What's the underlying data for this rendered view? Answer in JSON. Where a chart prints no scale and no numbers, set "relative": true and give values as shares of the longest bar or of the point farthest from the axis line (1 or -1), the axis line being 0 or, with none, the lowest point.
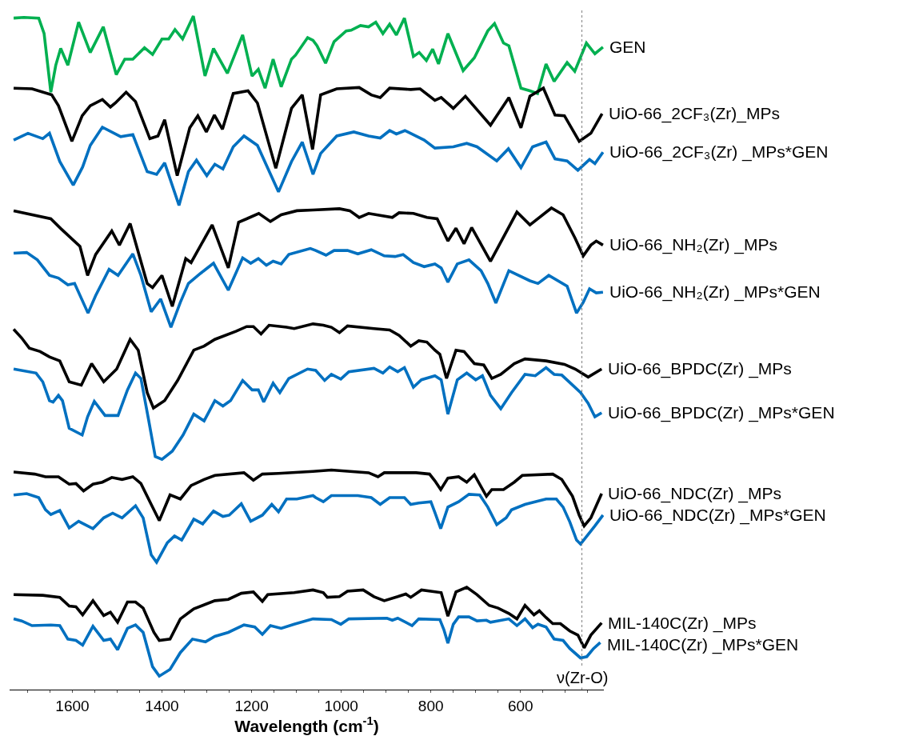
{
  "chart_data": {
    "type": "line",
    "relative": true,
    "xlabel": "Wavelength (cm$^{-1}$)",
    "xlim": [
      1740,
      414
    ],
    "xticks": [
      {
        "value": 1700,
        "label": null
      },
      {
        "value": 1650,
        "label": null
      },
      1600,
      {
        "value": 1550,
        "label": null
      },
      {
        "value": 1500,
        "label": null
      },
      {
        "value": 1450,
        "label": null
      },
      1400,
      {
        "value": 1350,
        "label": null
      },
      {
        "value": 1300,
        "label": null
      },
      {
        "value": 1250,
        "label": null
      },
      1200,
      {
        "value": 1150,
        "label": null
      },
      {
        "value": 1100,
        "label": null
      },
      {
        "value": 1050,
        "label": null
      },
      1000,
      {
        "value": 950,
        "label": null
      },
      {
        "value": 900,
        "label": null
      },
      {
        "value": 850,
        "label": null
      },
      800,
      {
        "value": 750,
        "label": null
      },
      {
        "value": 700,
        "label": null
      },
      {
        "value": 650,
        "label": null
      },
      600,
      {
        "value": 550,
        "label": null
      },
      {
        "value": 500,
        "label": null
      },
      {
        "value": 450,
        "label": null
      }
    ],
    "tick_labels": "x",
    "legend": false,
    "marker": "none",
    "line_style": "solid",
    "ref_lines": [
      {
        "axis": "x",
        "value": 463,
        "label": "ν(Zr-O)",
        "color": "#808080",
        "line_style": "dotted"
      }
    ],
    "series": [
      {
        "name": "GEN",
        "color": "#00b050",
        "x": [
          1731,
          1708,
          1675,
          1663,
          1648,
          1637,
          1626,
          1610,
          1586,
          1560,
          1531,
          1502,
          1483,
          1465,
          1439,
          1421,
          1400,
          1385,
          1371,
          1354,
          1330,
          1304,
          1285,
          1254,
          1220,
          1199,
          1185,
          1170,
          1152,
          1134,
          1111,
          1102,
          1075,
          1063,
          1054,
          1035,
          1016,
          989,
          978,
          957,
          939,
          923,
          907,
          892,
          877,
          859,
          839,
          826,
          810,
          796,
          783,
          762,
          728,
          703,
          673,
          658,
          638,
          626,
          599,
          579,
          562,
          543,
          525,
          496,
          479,
          453,
          434,
          416
        ],
        "values": [
          0.997,
          0.998,
          0.997,
          0.974,
          0.887,
          0.927,
          0.952,
          0.927,
          0.991,
          0.946,
          0.984,
          0.913,
          0.936,
          0.936,
          0.953,
          0.943,
          0.966,
          0.966,
          0.98,
          0.966,
          1.0,
          0.911,
          0.952,
          0.915,
          0.972,
          0.911,
          0.921,
          0.893,
          0.936,
          0.895,
          0.936,
          0.942,
          0.968,
          0.964,
          0.956,
          0.93,
          0.962,
          0.978,
          0.979,
          0.986,
          0.984,
          0.991,
          0.974,
          0.988,
          0.972,
          0.997,
          0.94,
          0.946,
          0.934,
          0.951,
          0.929,
          0.974,
          0.919,
          0.938,
          0.978,
          0.989,
          0.96,
          0.956,
          0.893,
          0.889,
          0.885,
          0.929,
          0.903,
          0.931,
          0.918,
          0.96,
          0.944,
          0.954
        ]
      },
      {
        "name": "UiO-66_2CF₃(Zr)_MPs",
        "color": "#000000",
        "x": [
          1731,
          1690,
          1646,
          1631,
          1601,
          1578,
          1560,
          1533,
          1515,
          1504,
          1480,
          1459,
          1427,
          1409,
          1394,
          1366,
          1338,
          1320,
          1301,
          1283,
          1265,
          1241,
          1208,
          1187,
          1146,
          1111,
          1087,
          1064,
          1046,
          1010,
          960,
          933,
          913,
          892,
          845,
          824,
          791,
          777,
          750,
          723,
          697,
          667,
          626,
          599,
          579,
          549,
          523,
          502,
          469,
          443,
          418
        ],
        "values": [
          0.893,
          0.892,
          0.883,
          0.867,
          0.814,
          0.852,
          0.867,
          0.876,
          0.865,
          0.871,
          0.887,
          0.873,
          0.818,
          0.822,
          0.846,
          0.763,
          0.834,
          0.852,
          0.828,
          0.853,
          0.832,
          0.885,
          0.889,
          0.871,
          0.774,
          0.863,
          0.883,
          0.802,
          0.883,
          0.892,
          0.894,
          0.883,
          0.879,
          0.893,
          0.891,
          0.892,
          0.875,
          0.879,
          0.863,
          0.881,
          0.861,
          0.838,
          0.879,
          0.834,
          0.881,
          0.893,
          0.853,
          0.852,
          0.814,
          0.826,
          0.855
        ]
      },
      {
        "name": "UiO-66_2CF₃(Zr) _MPs*GEN",
        "color": "#0070c0",
        "x": [
          1731,
          1699,
          1666,
          1651,
          1628,
          1598,
          1577,
          1560,
          1533,
          1492,
          1465,
          1433,
          1412,
          1394,
          1362,
          1341,
          1323,
          1300,
          1282,
          1264,
          1241,
          1217,
          1187,
          1140,
          1111,
          1087,
          1063,
          1046,
          1010,
          972,
          939,
          913,
          892,
          877,
          858,
          815,
          791,
          750,
          720,
          697,
          653,
          627,
          599,
          573,
          543,
          523,
          496,
          472,
          446,
          434,
          416
        ],
        "values": [
          0.816,
          0.826,
          0.818,
          0.826,
          0.784,
          0.749,
          0.776,
          0.808,
          0.835,
          0.821,
          0.824,
          0.769,
          0.765,
          0.782,
          0.719,
          0.769,
          0.786,
          0.763,
          0.78,
          0.773,
          0.806,
          0.822,
          0.808,
          0.739,
          0.784,
          0.813,
          0.765,
          0.796,
          0.822,
          0.828,
          0.822,
          0.819,
          0.83,
          0.825,
          0.83,
          0.816,
          0.804,
          0.806,
          0.811,
          0.806,
          0.785,
          0.803,
          0.775,
          0.806,
          0.813,
          0.788,
          0.785,
          0.771,
          0.787,
          0.781,
          0.798
        ]
      },
      {
        "name": "UiO-66_NH₂(Zr) _MPs",
        "color": "#000000",
        "x": [
          1731,
          1648,
          1625,
          1583,
          1566,
          1548,
          1512,
          1495,
          1471,
          1433,
          1421,
          1400,
          1377,
          1347,
          1335,
          1288,
          1252,
          1229,
          1211,
          1184,
          1158,
          1134,
          1099,
          1063,
          1004,
          981,
          960,
          939,
          886,
          871,
          839,
          809,
          786,
          762,
          744,
          726,
          709,
          667,
          608,
          579,
          531,
          505,
          478,
          460,
          443,
          431,
          416
        ],
        "values": [
          0.711,
          0.699,
          0.684,
          0.658,
          0.615,
          0.646,
          0.681,
          0.66,
          0.692,
          0.603,
          0.597,
          0.615,
          0.569,
          0.64,
          0.634,
          0.69,
          0.626,
          0.694,
          0.699,
          0.707,
          0.695,
          0.705,
          0.711,
          0.712,
          0.714,
          0.711,
          0.701,
          0.707,
          0.701,
          0.708,
          0.707,
          0.701,
          0.699,
          0.666,
          0.685,
          0.662,
          0.686,
          0.636,
          0.709,
          0.69,
          0.715,
          0.705,
          0.67,
          0.644,
          0.66,
          0.666,
          0.66
        ]
      },
      {
        "name": "UiO-66_NH₂(Zr) _MPs*GEN",
        "color": "#0070c0",
        "x": [
          1731,
          1702,
          1678,
          1651,
          1631,
          1610,
          1595,
          1565,
          1548,
          1518,
          1498,
          1465,
          1447,
          1424,
          1403,
          1380,
          1359,
          1341,
          1314,
          1285,
          1252,
          1220,
          1202,
          1185,
          1167,
          1152,
          1134,
          1117,
          1069,
          1057,
          1034,
          1016,
          986,
          963,
          933,
          904,
          880,
          862,
          839,
          815,
          791,
          777,
          762,
          741,
          715,
          688,
          673,
          655,
          626,
          579,
          561,
          537,
          496,
          475,
          460,
          446,
          431,
          416
        ],
        "values": [
          0.648,
          0.649,
          0.638,
          0.615,
          0.611,
          0.601,
          0.603,
          0.559,
          0.585,
          0.624,
          0.615,
          0.647,
          0.615,
          0.561,
          0.58,
          0.538,
          0.575,
          0.603,
          0.618,
          0.633,
          0.593,
          0.641,
          0.633,
          0.64,
          0.63,
          0.636,
          0.632,
          0.646,
          0.655,
          0.652,
          0.645,
          0.652,
          0.652,
          0.647,
          0.653,
          0.644,
          0.643,
          0.646,
          0.634,
          0.628,
          0.632,
          0.626,
          0.605,
          0.632,
          0.638,
          0.622,
          0.603,
          0.574,
          0.622,
          0.607,
          0.603,
          0.615,
          0.599,
          0.559,
          0.575,
          0.595,
          0.589,
          0.59
        ]
      },
      {
        "name": "UiO-66_BPDC(Zr) _MPs",
        "color": "#000000",
        "x": [
          1731,
          1713,
          1696,
          1672,
          1651,
          1628,
          1607,
          1580,
          1557,
          1530,
          1501,
          1471,
          1453,
          1433,
          1419,
          1394,
          1365,
          1329,
          1306,
          1282,
          1235,
          1211,
          1196,
          1179,
          1161,
          1122,
          1105,
          1063,
          1040,
          1022,
          1004,
          986,
          927,
          892,
          871,
          845,
          827,
          809,
          791,
          780,
          765,
          744,
          726,
          703,
          682,
          664,
          644,
          614,
          590,
          543,
          502,
          478,
          449,
          419
        ],
        "values": [
          0.535,
          0.522,
          0.507,
          0.502,
          0.494,
          0.488,
          0.457,
          0.452,
          0.484,
          0.457,
          0.476,
          0.52,
          0.504,
          0.441,
          0.418,
          0.429,
          0.459,
          0.504,
          0.51,
          0.52,
          0.532,
          0.539,
          0.539,
          0.528,
          0.541,
          0.538,
          0.536,
          0.543,
          0.541,
          0.538,
          0.53,
          0.54,
          0.536,
          0.534,
          0.526,
          0.51,
          0.518,
          0.516,
          0.504,
          0.498,
          0.462,
          0.504,
          0.502,
          0.484,
          0.482,
          0.462,
          0.468,
          0.484,
          0.491,
          0.488,
          0.483,
          0.476,
          0.464,
          0.476
        ]
      },
      {
        "name": "UiO-66_BPDC(Zr) _MPs*GEN",
        "color": "#0070c0",
        "x": [
          1731,
          1681,
          1666,
          1651,
          1643,
          1631,
          1622,
          1607,
          1578,
          1566,
          1551,
          1527,
          1498,
          1477,
          1459,
          1447,
          1430,
          1415,
          1400,
          1377,
          1353,
          1329,
          1306,
          1282,
          1264,
          1247,
          1220,
          1199,
          1185,
          1173,
          1152,
          1137,
          1117,
          1075,
          1057,
          1037,
          1022,
          1001,
          983,
          927,
          907,
          892,
          874,
          859,
          839,
          821,
          791,
          777,
          762,
          741,
          720,
          700,
          685,
          667,
          644,
          620,
          590,
          567,
          543,
          525,
          508,
          490,
          466,
          449,
          434,
          419
        ],
        "values": [
          0.476,
          0.47,
          0.457,
          0.429,
          0.427,
          0.437,
          0.429,
          0.388,
          0.378,
          0.405,
          0.428,
          0.407,
          0.407,
          0.445,
          0.47,
          0.462,
          0.401,
          0.346,
          0.342,
          0.354,
          0.378,
          0.409,
          0.399,
          0.429,
          0.421,
          0.429,
          0.459,
          0.445,
          0.445,
          0.427,
          0.455,
          0.441,
          0.462,
          0.476,
          0.474,
          0.459,
          0.468,
          0.461,
          0.472,
          0.477,
          0.47,
          0.479,
          0.472,
          0.478,
          0.449,
          0.46,
          0.466,
          0.46,
          0.409,
          0.46,
          0.47,
          0.46,
          0.466,
          0.437,
          0.417,
          0.441,
          0.468,
          0.466,
          0.478,
          0.468,
          0.467,
          0.456,
          0.441,
          0.425,
          0.405,
          0.411
        ]
      },
      {
        "name": "UiO-66_NDC(Zr) _MPs",
        "color": "#000000",
        "x": [
          1731,
          1684,
          1660,
          1631,
          1607,
          1592,
          1575,
          1554,
          1533,
          1512,
          1489,
          1465,
          1447,
          1424,
          1406,
          1382,
          1359,
          1335,
          1306,
          1282,
          1217,
          1196,
          1176,
          1140,
          1063,
          1022,
          939,
          918,
          904,
          833,
          803,
          791,
          778,
          762,
          738,
          720,
          703,
          676,
          664,
          638,
          614,
          596,
          528,
          508,
          484,
          469,
          458,
          443,
          419
        ],
        "values": [
          0.323,
          0.32,
          0.316,
          0.316,
          0.305,
          0.306,
          0.295,
          0.305,
          0.308,
          0.315,
          0.312,
          0.316,
          0.306,
          0.275,
          0.251,
          0.289,
          0.283,
          0.303,
          0.312,
          0.318,
          0.322,
          0.311,
          0.32,
          0.321,
          0.324,
          0.326,
          0.322,
          0.316,
          0.322,
          0.322,
          0.32,
          0.31,
          0.297,
          0.314,
          0.316,
          0.308,
          0.319,
          0.287,
          0.297,
          0.297,
          0.308,
          0.318,
          0.32,
          0.312,
          0.287,
          0.259,
          0.243,
          0.255,
          0.291
        ]
      },
      {
        "name": "UiO-66_NDC(Zr) _MPs*GEN",
        "color": "#0070c0",
        "x": [
          1731,
          1702,
          1675,
          1660,
          1648,
          1628,
          1607,
          1586,
          1554,
          1530,
          1510,
          1489,
          1459,
          1442,
          1424,
          1412,
          1388,
          1372,
          1356,
          1329,
          1309,
          1285,
          1264,
          1250,
          1223,
          1202,
          1176,
          1155,
          1140,
          1122,
          1099,
          1063,
          1057,
          1040,
          1022,
          963,
          933,
          913,
          892,
          859,
          845,
          827,
          800,
          791,
          778,
          762,
          738,
          715,
          691,
          673,
          653,
          632,
          620,
          590,
          543,
          520,
          505,
          490,
          475,
          466,
          452,
          434,
          416
        ],
        "values": [
          0.289,
          0.291,
          0.285,
          0.267,
          0.26,
          0.266,
          0.24,
          0.25,
          0.239,
          0.255,
          0.262,
          0.255,
          0.273,
          0.255,
          0.2,
          0.189,
          0.218,
          0.228,
          0.222,
          0.253,
          0.246,
          0.265,
          0.257,
          0.259,
          0.276,
          0.25,
          0.259,
          0.275,
          0.264,
          0.283,
          0.283,
          0.288,
          0.285,
          0.279,
          0.288,
          0.288,
          0.285,
          0.275,
          0.285,
          0.285,
          0.275,
          0.277,
          0.279,
          0.263,
          0.239,
          0.271,
          0.279,
          0.29,
          0.289,
          0.271,
          0.245,
          0.255,
          0.267,
          0.275,
          0.283,
          0.283,
          0.271,
          0.249,
          0.222,
          0.216,
          0.228,
          0.243,
          0.259
        ]
      },
      {
        "name": "MIL-140C(Zr) _MPs",
        "color": "#000000",
        "x": [
          1731,
          1666,
          1628,
          1607,
          1592,
          1577,
          1554,
          1530,
          1515,
          1499,
          1477,
          1459,
          1442,
          1418,
          1406,
          1382,
          1359,
          1329,
          1282,
          1252,
          1223,
          1196,
          1176,
          1164,
          1105,
          1063,
          1040,
          1031,
          1004,
          986,
          951,
          927,
          904,
          874,
          856,
          845,
          821,
          777,
          762,
          744,
          720,
          697,
          670,
          650,
          626,
          608,
          590,
          570,
          558,
          543,
          528,
          511,
          490,
          472,
          458,
          443,
          419
        ],
        "values": [
          0.141,
          0.14,
          0.137,
          0.124,
          0.123,
          0.111,
          0.132,
          0.11,
          0.115,
          0.1,
          0.13,
          0.13,
          0.121,
          0.085,
          0.073,
          0.075,
          0.105,
          0.12,
          0.132,
          0.134,
          0.143,
          0.145,
          0.131,
          0.141,
          0.144,
          0.148,
          0.144,
          0.137,
          0.138,
          0.146,
          0.148,
          0.138,
          0.132,
          0.138,
          0.142,
          0.137,
          0.148,
          0.144,
          0.109,
          0.145,
          0.152,
          0.141,
          0.125,
          0.121,
          0.113,
          0.105,
          0.125,
          0.111,
          0.117,
          0.107,
          0.098,
          0.098,
          0.087,
          0.081,
          0.062,
          0.081,
          0.099
        ]
      },
      {
        "name": "MIL-140C(Zr) _MPs*GEN",
        "color": "#0070c0",
        "x": [
          1731,
          1713,
          1690,
          1648,
          1628,
          1610,
          1592,
          1577,
          1554,
          1530,
          1515,
          1499,
          1477,
          1459,
          1442,
          1421,
          1406,
          1382,
          1359,
          1332,
          1303,
          1282,
          1252,
          1217,
          1193,
          1176,
          1158,
          1134,
          1105,
          1063,
          1022,
          1001,
          983,
          898,
          886,
          874,
          842,
          827,
          780,
          771,
          762,
          750,
          738,
          715,
          697,
          676,
          667,
          626,
          608,
          590,
          573,
          561,
          543,
          525,
          505,
          490,
          466,
          452,
          437,
          422
        ],
        "values": [
          0.105,
          0.102,
          0.095,
          0.096,
          0.095,
          0.075,
          0.073,
          0.066,
          0.094,
          0.073,
          0.075,
          0.059,
          0.091,
          0.096,
          0.085,
          0.034,
          0.02,
          0.03,
          0.055,
          0.075,
          0.071,
          0.079,
          0.085,
          0.096,
          0.093,
          0.082,
          0.095,
          0.091,
          0.097,
          0.105,
          0.104,
          0.097,
          0.105,
          0.106,
          0.103,
          0.106,
          0.095,
          0.105,
          0.104,
          0.089,
          0.069,
          0.097,
          0.108,
          0.108,
          0.102,
          0.103,
          0.1,
          0.105,
          0.095,
          0.105,
          0.092,
          0.097,
          0.093,
          0.075,
          0.073,
          0.061,
          0.047,
          0.049,
          0.061,
          0.07
        ]
      }
    ]
  }
}
